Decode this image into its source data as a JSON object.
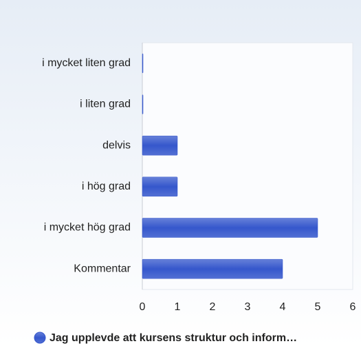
{
  "chart_data": {
    "type": "bar",
    "orientation": "horizontal",
    "categories": [
      "i mycket liten grad",
      "i liten grad",
      "delvis",
      "i hög grad",
      "i mycket hög grad",
      "Kommentar"
    ],
    "series": [
      {
        "name": "Jag upplevde att kursens struktur och inform…",
        "color": "#3557cc",
        "values": [
          0,
          0,
          1,
          1,
          5,
          4
        ]
      }
    ],
    "xlim": [
      0,
      6
    ],
    "xticks": [
      0,
      1,
      2,
      3,
      4,
      5,
      6
    ],
    "grid": false,
    "legend": "bottom"
  }
}
